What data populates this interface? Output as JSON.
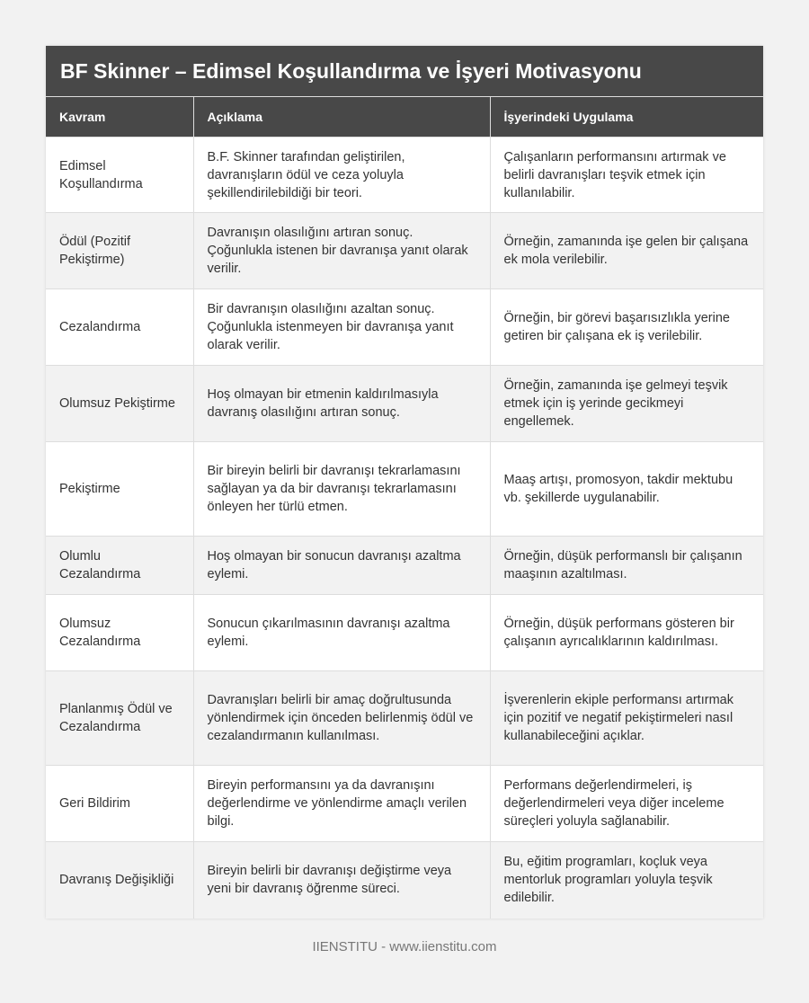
{
  "title": "BF Skinner – Edimsel Koşullandırma ve İşyeri Motivasyonu",
  "columns": [
    "Kavram",
    "Açıklama",
    "İşyerindeki Uygulama"
  ],
  "rows": [
    {
      "kavram": "Edimsel Koşullandırma",
      "aciklama": "B.F. Skinner tarafından geliştirilen, davranışların ödül ve ceza yoluyla şekillendirilebildiği bir teori.",
      "uygulama": "Çalışanların performansını artırmak ve belirli davranışları teşvik etmek için kullanılabilir."
    },
    {
      "kavram": "Ödül (Pozitif Pekiştirme)",
      "aciklama": "Davranışın olasılığını artıran sonuç. Çoğunlukla istenen bir davranışa yanıt olarak verilir.",
      "uygulama": "Örneğin, zamanında işe gelen bir çalışana ek mola verilebilir."
    },
    {
      "kavram": "Cezalandırma",
      "aciklama": "Bir davranışın olasılığını azaltan sonuç. Çoğunlukla istenmeyen bir davranışa yanıt olarak verilir.",
      "uygulama": "Örneğin, bir görevi başarısızlıkla yerine getiren bir çalışana ek iş verilebilir."
    },
    {
      "kavram": "Olumsuz Pekiştirme",
      "aciklama": "Hoş olmayan bir etmenin kaldırılmasıyla davranış olasılığını artıran sonuç.",
      "uygulama": "Örneğin, zamanında işe gelmeyi teşvik etmek için iş yerinde gecikmeyi engellemek."
    },
    {
      "kavram": "Pekiştirme",
      "aciklama": "Bir bireyin belirli bir davranışı tekrarlamasını sağlayan ya da bir davranışı tekrarlamasını önleyen her türlü etmen.",
      "uygulama": "Maaş artışı, promosyon, takdir mektubu vb. şekillerde uygulanabilir."
    },
    {
      "kavram": "Olumlu Cezalandırma",
      "aciklama": "Hoş olmayan bir sonucun davranışı azaltma eylemi.",
      "uygulama": "Örneğin, düşük performanslı bir çalışanın maaşının azaltılması."
    },
    {
      "kavram": "Olumsuz Cezalandırma",
      "aciklama": "Sonucun çıkarılmasının davranışı azaltma eylemi.",
      "uygulama": "Örneğin, düşük performans gösteren bir çalışanın ayrıcalıklarının kaldırılması."
    },
    {
      "kavram": "Planlanmış Ödül ve Cezalandırma",
      "aciklama": "Davranışları belirli bir amaç doğrultusunda yönlendirmek için önceden belirlenmiş ödül ve cezalandırmanın kullanılması.",
      "uygulama": "İşverenlerin ekiple performansı artırmak için pozitif ve negatif pekiştirmeleri nasıl kullanabileceğini açıklar."
    },
    {
      "kavram": "Geri Bildirim",
      "aciklama": "Bireyin performansını ya da davranışını değerlendirme ve yönlendirme amaçlı verilen bilgi.",
      "uygulama": "Performans değerlendirmeleri, iş değerlendirmeleri veya diğer inceleme süreçleri yoluyla sağlanabilir."
    },
    {
      "kavram": "Davranış Değişikliği",
      "aciklama": "Bireyin belirli bir davranışı değiştirme veya yeni bir davranış öğrenme süreci.",
      "uygulama": "Bu, eğitim programları, koçluk veya mentorluk programları yoluyla teşvik edilebilir."
    }
  ],
  "footer": "IIENSTITU - www.iienstitu.com"
}
